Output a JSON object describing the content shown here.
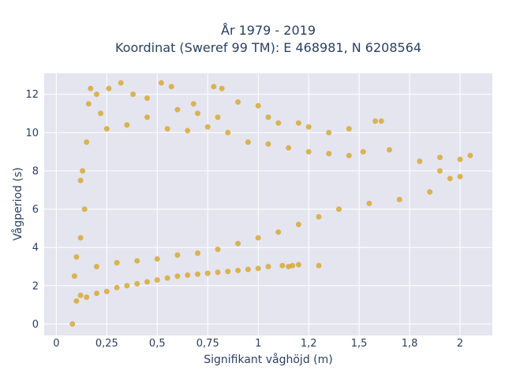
{
  "chart_data": {
    "type": "scatter",
    "title_line1": "År 1979 - 2019",
    "title_line2": "Koordinat (Sweref 99 TM): E 468981, N 6208564",
    "xlabel": "Signifikant våghöjd (m)",
    "ylabel": "Vågperiod (s)",
    "xlim": [
      -0.06,
      2.16
    ],
    "ylim": [
      -0.6,
      13.1
    ],
    "x_ticks": [
      0,
      0.25,
      0.5,
      0.75,
      1,
      1.25,
      1.5,
      1.75,
      2
    ],
    "x_tick_labels": [
      "0",
      "0,25",
      "0,5",
      "0,75",
      "1",
      "1,2",
      "1,5",
      "1,8",
      "2"
    ],
    "y_ticks": [
      0,
      2,
      4,
      6,
      8,
      10,
      12
    ],
    "y_tick_labels": [
      "0",
      "2",
      "4",
      "6",
      "8",
      "10",
      "12"
    ],
    "grid": true,
    "marker_color": "#d4a21d",
    "plot_bg_color": "#e5e5f0",
    "series": [
      {
        "points": [
          [
            0.08,
            0.0
          ],
          [
            0.1,
            1.2
          ],
          [
            0.12,
            1.5
          ],
          [
            0.15,
            1.4
          ],
          [
            0.2,
            1.6
          ],
          [
            0.25,
            1.7
          ],
          [
            0.3,
            1.9
          ],
          [
            0.35,
            2.0
          ],
          [
            0.4,
            2.1
          ],
          [
            0.45,
            2.2
          ],
          [
            0.5,
            2.3
          ],
          [
            0.55,
            2.4
          ],
          [
            0.6,
            2.5
          ],
          [
            0.65,
            2.55
          ],
          [
            0.7,
            2.6
          ],
          [
            0.75,
            2.65
          ],
          [
            0.8,
            2.7
          ],
          [
            0.85,
            2.75
          ],
          [
            0.9,
            2.8
          ],
          [
            0.95,
            2.85
          ],
          [
            1.0,
            2.9
          ],
          [
            1.05,
            3.0
          ],
          [
            1.12,
            3.05
          ],
          [
            1.17,
            3.05
          ],
          [
            0.09,
            2.5
          ],
          [
            0.1,
            3.5
          ],
          [
            0.12,
            4.5
          ],
          [
            0.14,
            6.0
          ],
          [
            0.12,
            7.5
          ],
          [
            0.13,
            8.0
          ],
          [
            0.15,
            9.5
          ],
          [
            0.16,
            11.5
          ],
          [
            0.17,
            12.3
          ],
          [
            0.2,
            12.0
          ],
          [
            0.22,
            11.0
          ],
          [
            0.26,
            12.3
          ],
          [
            0.32,
            12.6
          ],
          [
            0.38,
            12.0
          ],
          [
            0.45,
            11.8
          ],
          [
            0.52,
            12.6
          ],
          [
            0.57,
            12.4
          ],
          [
            0.68,
            11.5
          ],
          [
            0.78,
            12.4
          ],
          [
            0.82,
            12.3
          ],
          [
            0.9,
            11.6
          ],
          [
            1.0,
            11.4
          ],
          [
            0.6,
            11.2
          ],
          [
            0.7,
            11.0
          ],
          [
            0.8,
            10.8
          ],
          [
            1.05,
            10.8
          ],
          [
            1.1,
            10.5
          ],
          [
            1.2,
            10.5
          ],
          [
            1.25,
            10.3
          ],
          [
            1.35,
            10.0
          ],
          [
            1.45,
            10.2
          ],
          [
            1.58,
            10.6
          ],
          [
            1.61,
            10.6
          ],
          [
            1.52,
            9.0
          ],
          [
            1.65,
            9.1
          ],
          [
            1.8,
            8.5
          ],
          [
            1.9,
            8.7
          ],
          [
            2.0,
            8.6
          ],
          [
            2.05,
            8.8
          ],
          [
            1.9,
            8.0
          ],
          [
            1.95,
            7.6
          ],
          [
            2.0,
            7.7
          ],
          [
            1.85,
            6.9
          ],
          [
            1.7,
            6.5
          ],
          [
            1.55,
            6.3
          ],
          [
            1.4,
            6.0
          ],
          [
            1.3,
            5.6
          ],
          [
            1.2,
            5.2
          ],
          [
            1.1,
            4.8
          ],
          [
            1.0,
            4.5
          ],
          [
            0.9,
            4.2
          ],
          [
            0.8,
            3.9
          ],
          [
            0.7,
            3.7
          ],
          [
            0.6,
            3.6
          ],
          [
            0.5,
            3.4
          ],
          [
            0.4,
            3.3
          ],
          [
            0.3,
            3.2
          ],
          [
            0.2,
            3.0
          ],
          [
            1.15,
            3.0
          ],
          [
            1.2,
            3.1
          ],
          [
            1.3,
            3.05
          ],
          [
            0.25,
            10.2
          ],
          [
            0.35,
            10.4
          ],
          [
            0.45,
            10.8
          ],
          [
            0.55,
            10.2
          ],
          [
            0.65,
            10.1
          ],
          [
            0.75,
            10.3
          ],
          [
            0.85,
            10.0
          ],
          [
            0.95,
            9.5
          ],
          [
            1.05,
            9.4
          ],
          [
            1.15,
            9.2
          ],
          [
            1.25,
            9.0
          ],
          [
            1.35,
            8.9
          ],
          [
            1.45,
            8.8
          ]
        ]
      }
    ]
  }
}
